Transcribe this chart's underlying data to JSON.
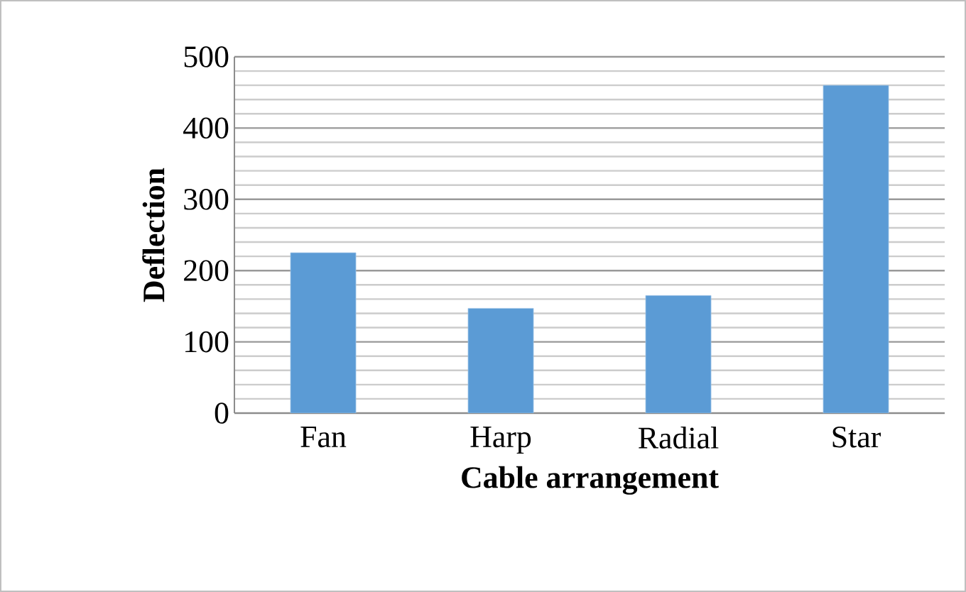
{
  "chart_data": {
    "type": "bar",
    "xlabel": "Cable arrangement",
    "ylabel": "Deflection",
    "categories": [
      "Fan",
      "Harp",
      "Radial",
      "Star"
    ],
    "values": [
      225,
      147,
      165,
      460
    ],
    "color": "#5b9bd5",
    "ylim": [
      0,
      500
    ],
    "yticks": [
      0,
      100,
      200,
      300,
      400,
      500
    ],
    "grid": "y"
  }
}
